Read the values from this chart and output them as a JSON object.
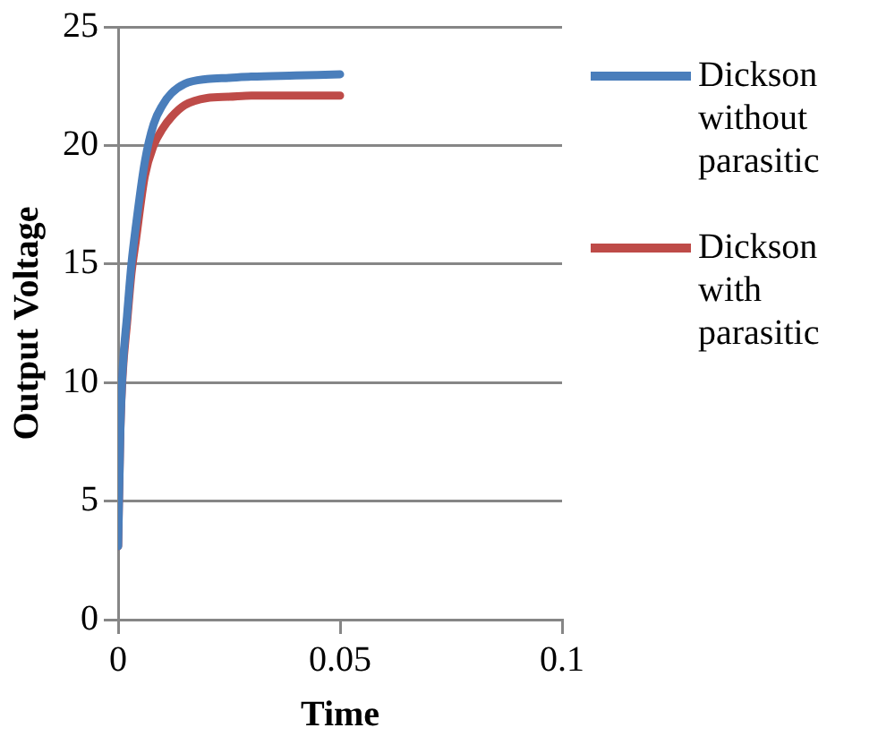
{
  "chart_data": {
    "type": "line",
    "xlabel": "Time",
    "ylabel": "Output Voltage",
    "xlim": [
      0,
      0.1
    ],
    "xticks": [
      0,
      0.05,
      0.1
    ],
    "ylim": [
      0,
      25
    ],
    "yticks": [
      0,
      5,
      10,
      15,
      20,
      25
    ],
    "grid": "y",
    "legend": "right",
    "marker": "none",
    "line_style": "solid",
    "series": [
      {
        "name": "Dickson without parasitic",
        "color": "#4a7ebb",
        "x": [
          0,
          0.0005,
          0.001,
          0.002,
          0.003,
          0.004,
          0.006,
          0.008,
          0.01,
          0.012,
          0.015,
          0.02,
          0.025,
          0.03,
          0.04,
          0.05
        ],
        "values": [
          3.1,
          8,
          10.5,
          12.8,
          15,
          16.6,
          19.3,
          20.9,
          21.7,
          22.2,
          22.6,
          22.8,
          22.85,
          22.9,
          22.95,
          23
        ]
      },
      {
        "name": "Dickson with parasitic",
        "color": "#be4b48",
        "x": [
          0,
          0.0005,
          0.001,
          0.002,
          0.003,
          0.004,
          0.006,
          0.008,
          0.01,
          0.012,
          0.015,
          0.02,
          0.025,
          0.03,
          0.04,
          0.05
        ],
        "values": [
          3.1,
          8,
          10.3,
          12.5,
          14.6,
          16,
          18.7,
          20,
          20.7,
          21.2,
          21.7,
          22,
          22.05,
          22.1,
          22.1,
          22.1
        ]
      }
    ]
  }
}
